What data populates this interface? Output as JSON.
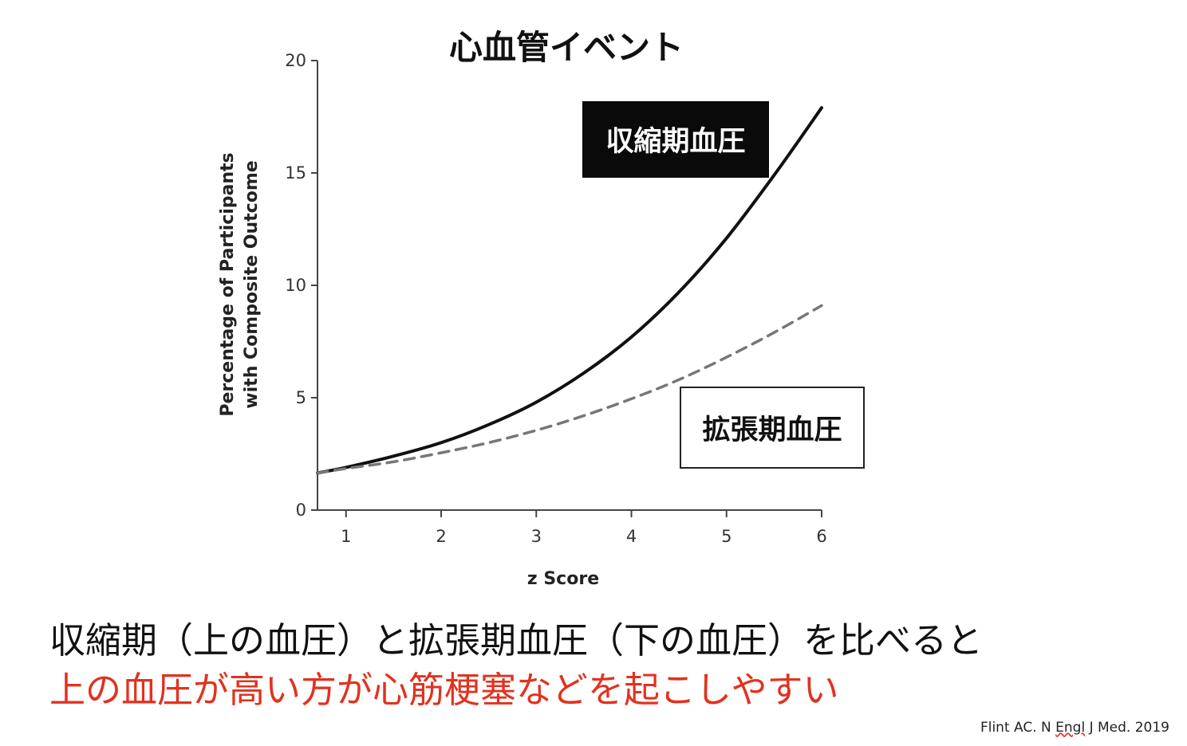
{
  "chart_data": {
    "type": "line",
    "title": "心血管イベント",
    "xlabel": "z Score",
    "ylabel": [
      "Percentage of Participants",
      "with Composite Outcome"
    ],
    "xlim": [
      0.7,
      6
    ],
    "ylim": [
      0,
      20
    ],
    "xticks": [
      1,
      2,
      3,
      4,
      5,
      6
    ],
    "yticks": [
      0,
      5,
      10,
      15,
      20
    ],
    "x": [
      0.7,
      1,
      1.5,
      2,
      2.5,
      3,
      3.5,
      4,
      4.5,
      5,
      5.5,
      6
    ],
    "series": [
      {
        "name": "収縮期血圧",
        "style": "solid",
        "color": "#111111",
        "values": [
          1.65,
          1.9,
          2.4,
          3.0,
          3.8,
          4.8,
          6.1,
          7.7,
          9.7,
          12.1,
          14.9,
          17.9
        ]
      },
      {
        "name": "拡張期血圧",
        "style": "dashed",
        "color": "#777777",
        "values": [
          1.65,
          1.85,
          2.15,
          2.55,
          3.0,
          3.55,
          4.2,
          4.95,
          5.8,
          6.8,
          7.9,
          9.1
        ]
      }
    ],
    "grid": false,
    "legend": "inline-labels"
  },
  "caption": {
    "line1": "収縮期（上の血圧）と拡張期血圧（下の血圧）を比べると",
    "line2": "上の血圧が高い方が心筋梗塞などを起こしやすい"
  },
  "citation": {
    "prefix": "Flint AC. N ",
    "underlined": "Engl",
    "suffix": " J Med. 2019"
  },
  "colors": {
    "highlight": "#e2321f",
    "systolic": "#111111",
    "diastolic": "#777777"
  }
}
